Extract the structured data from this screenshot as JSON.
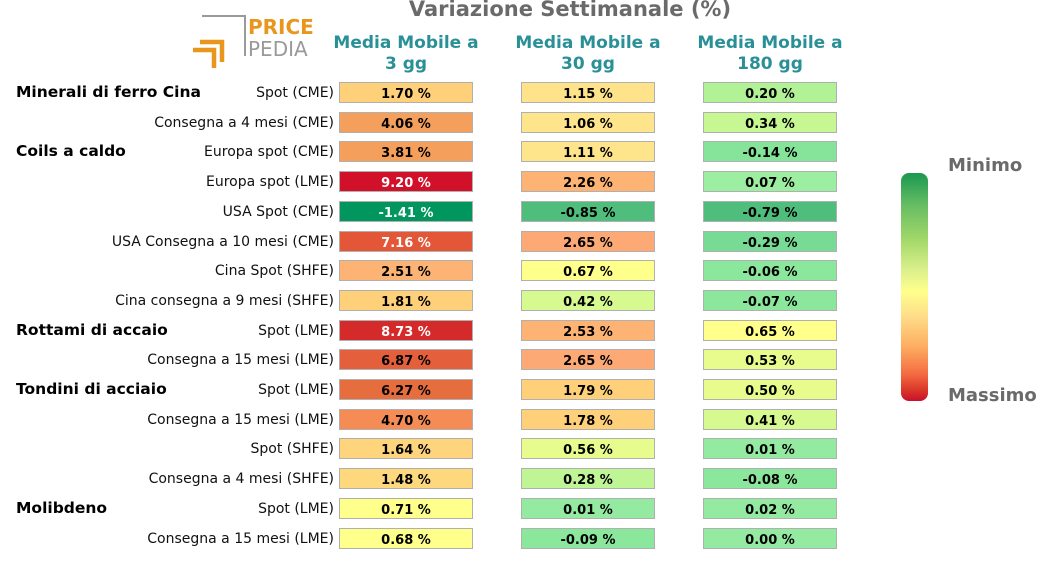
{
  "logo": {
    "line1": "PRICE",
    "line2": "PEDIA"
  },
  "chart_data": {
    "type": "heatmap",
    "title": "Variazione Settimanale (%)",
    "columns": [
      "Media Mobile a 3 gg",
      "Media Mobile a 30 gg",
      "Media Mobile a 180 gg"
    ],
    "column_lines": [
      [
        "Media Mobile a",
        "3 gg"
      ],
      [
        "Media Mobile a",
        "30 gg"
      ],
      [
        "Media Mobile a",
        "180 gg"
      ]
    ],
    "rows": [
      {
        "group": "Minerali di ferro Cina",
        "label": "Spot (CME)",
        "values": [
          1.7,
          1.15,
          0.2
        ],
        "text": [
          "1.70 %",
          "1.15 %",
          "0.20 %"
        ]
      },
      {
        "group": "",
        "label": "Consegna a 4 mesi (CME)",
        "values": [
          4.06,
          1.06,
          0.34
        ],
        "text": [
          "4.06 %",
          "1.06 %",
          "0.34 %"
        ]
      },
      {
        "group": "Coils a caldo",
        "label": "Europa spot (CME)",
        "values": [
          3.81,
          1.11,
          -0.14
        ],
        "text": [
          "3.81 %",
          "1.11 %",
          "-0.14 %"
        ]
      },
      {
        "group": "",
        "label": "Europa spot (LME)",
        "values": [
          9.2,
          2.26,
          0.07
        ],
        "text": [
          "9.20 %",
          "2.26 %",
          "0.07 %"
        ]
      },
      {
        "group": "",
        "label": "USA Spot (CME)",
        "values": [
          -1.41,
          -0.85,
          -0.79
        ],
        "text": [
          "-1.41 %",
          "-0.85 %",
          "-0.79 %"
        ]
      },
      {
        "group": "",
        "label": "USA Consegna a 10 mesi (CME)",
        "values": [
          7.16,
          2.65,
          -0.29
        ],
        "text": [
          "7.16 %",
          "2.65 %",
          "-0.29 %"
        ]
      },
      {
        "group": "",
        "label": "Cina Spot (SHFE)",
        "values": [
          2.51,
          0.67,
          -0.06
        ],
        "text": [
          "2.51 %",
          "0.67 %",
          "-0.06 %"
        ]
      },
      {
        "group": "",
        "label": "Cina consegna a 9 mesi (SHFE)",
        "values": [
          1.81,
          0.42,
          -0.07
        ],
        "text": [
          "1.81 %",
          "0.42 %",
          "-0.07 %"
        ]
      },
      {
        "group": "Rottami di accaio",
        "label": "Spot (LME)",
        "values": [
          8.73,
          2.53,
          0.65
        ],
        "text": [
          "8.73 %",
          "2.53 %",
          "0.65 %"
        ]
      },
      {
        "group": "",
        "label": "Consegna a 15 mesi (LME)",
        "values": [
          6.87,
          2.65,
          0.53
        ],
        "text": [
          "6.87 %",
          "2.65 %",
          "0.53 %"
        ]
      },
      {
        "group": "Tondini di acciaio",
        "label": "Spot (LME)",
        "values": [
          6.27,
          1.79,
          0.5
        ],
        "text": [
          "6.27 %",
          "1.79 %",
          "0.50 %"
        ]
      },
      {
        "group": "",
        "label": "Consegna a 15 mesi (LME)",
        "values": [
          4.7,
          1.78,
          0.41
        ],
        "text": [
          "4.70 %",
          "1.78 %",
          "0.41 %"
        ]
      },
      {
        "group": "",
        "label": "Spot (SHFE)",
        "values": [
          1.64,
          0.56,
          0.01
        ],
        "text": [
          "1.64 %",
          "0.56 %",
          "0.01 %"
        ]
      },
      {
        "group": "",
        "label": "Consegna a 4 mesi (SHFE)",
        "values": [
          1.48,
          0.28,
          -0.08
        ],
        "text": [
          "1.48 %",
          "0.28 %",
          "-0.08 %"
        ]
      },
      {
        "group": "Molibdeno",
        "label": "Spot (LME)",
        "values": [
          0.71,
          0.01,
          0.02
        ],
        "text": [
          "0.71 %",
          "0.01 %",
          "0.02 %"
        ]
      },
      {
        "group": "",
        "label": "Consegna a 15 mesi (LME)",
        "values": [
          0.68,
          -0.09,
          0.0
        ],
        "text": [
          "0.68 %",
          "-0.09 %",
          "0.00 %"
        ]
      }
    ],
    "colors": {
      "row_colors": [
        [
          "#fed07a",
          "#fee38a",
          "#b1f296"
        ],
        [
          "#f59f5c",
          "#fee58b",
          "#c6f793"
        ],
        [
          "#f59f5c",
          "#fee58b",
          "#85e39a"
        ],
        [
          "#d11129",
          "#fdb374",
          "#9ceea0"
        ],
        [
          "#00965e",
          "#4fbd7c",
          "#4fbd7c"
        ],
        [
          "#e45638",
          "#fca976",
          "#77db95"
        ],
        [
          "#fdb374",
          "#ffff8c",
          "#8ae79c"
        ],
        [
          "#fed07a",
          "#d6f990",
          "#8ae79c"
        ],
        [
          "#d42a2a",
          "#fdb374",
          "#ffff8c"
        ],
        [
          "#e45f3c",
          "#fca976",
          "#e7fc8c"
        ],
        [
          "#e56d3e",
          "#fed07a",
          "#e7fc8c"
        ],
        [
          "#f58c55",
          "#fed07a",
          "#d6f990"
        ],
        [
          "#fed57c",
          "#e7fc8c",
          "#93eaa0"
        ],
        [
          "#fed87c",
          "#c0f595",
          "#8ae79c"
        ],
        [
          "#ffff8c",
          "#93eaa0",
          "#93eaa0"
        ],
        [
          "#ffff8c",
          "#8ae79c",
          "#93eaa0"
        ]
      ],
      "light_text": [
        "#d11129",
        "#00965e",
        "#e45638",
        "#d42a2a"
      ]
    },
    "legend": {
      "top": "Minimo",
      "bottom": "Massimo",
      "placement": "right"
    }
  }
}
